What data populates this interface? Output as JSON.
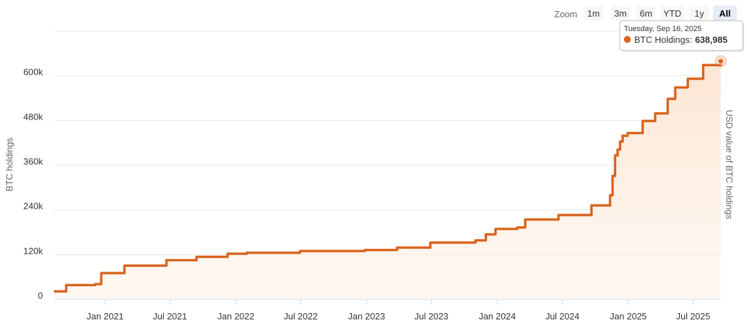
{
  "chart_data": {
    "type": "step-area",
    "y_axis_label": "BTC holdings",
    "y2_axis_label": "USD value of BTC holdings",
    "zoom": {
      "label": "Zoom",
      "buttons": [
        "1m",
        "3m",
        "6m",
        "YTD",
        "1y",
        "All"
      ],
      "selected": "All"
    },
    "series": [
      {
        "name": "BTC Holdings",
        "color": "#d9641e",
        "x": [
          "2020-08-11",
          "2020-09-14",
          "2020-12-04",
          "2020-12-21",
          "2021-02-24",
          "2021-06-21",
          "2021-09-13",
          "2021-12-09",
          "2022-02-01",
          "2022-06-29",
          "2022-12-27",
          "2023-03-27",
          "2023-06-28",
          "2023-11-01",
          "2023-11-30",
          "2023-12-27",
          "2024-02-26",
          "2024-03-19",
          "2024-06-20",
          "2024-09-20",
          "2024-11-11",
          "2024-11-18",
          "2024-11-25",
          "2024-12-02",
          "2024-12-09",
          "2024-12-16",
          "2024-12-30",
          "2025-02-10",
          "2025-03-17",
          "2025-04-21",
          "2025-05-12",
          "2025-06-16",
          "2025-07-29",
          "2025-09-16"
        ],
        "values": [
          21454,
          38250,
          40824,
          70470,
          90531,
          105085,
          114042,
          122478,
          125051,
          129699,
          132500,
          138955,
          152333,
          158245,
          174530,
          189150,
          193000,
          214246,
          226331,
          252220,
          279420,
          331200,
          386700,
          402100,
          423650,
          439000,
          446400,
          478740,
          499226,
          538200,
          568840,
          592100,
          628791,
          638985
        ]
      }
    ],
    "tooltip": {
      "date": "Tuesday, Sep 16, 2025",
      "label": "BTC Holdings:",
      "value": 638985,
      "value_label": "638,985"
    },
    "xlim": [
      "2020-08-11",
      "2025-09-16"
    ],
    "xticks": [
      {
        "value": "2021-01-01",
        "label": "Jan 2021"
      },
      {
        "value": "2021-07-01",
        "label": "Jul 2021"
      },
      {
        "value": "2022-01-01",
        "label": "Jan 2022"
      },
      {
        "value": "2022-07-01",
        "label": "Jul 2022"
      },
      {
        "value": "2023-01-01",
        "label": "Jan 2023"
      },
      {
        "value": "2023-07-01",
        "label": "Jul 2023"
      },
      {
        "value": "2024-01-01",
        "label": "Jan 2024"
      },
      {
        "value": "2024-07-01",
        "label": "Jul 2024"
      },
      {
        "value": "2025-01-01",
        "label": "Jan 2025"
      },
      {
        "value": "2025-07-01",
        "label": "Jul 2025"
      }
    ],
    "ylim": [
      0,
      720000
    ],
    "yticks": [
      {
        "value": 0,
        "label": "0"
      },
      {
        "value": 120000,
        "label": "120k"
      },
      {
        "value": 240000,
        "label": "240k"
      },
      {
        "value": 360000,
        "label": "360k"
      },
      {
        "value": 480000,
        "label": "480k"
      },
      {
        "value": 600000,
        "label": "600k"
      }
    ],
    "grid": true
  }
}
